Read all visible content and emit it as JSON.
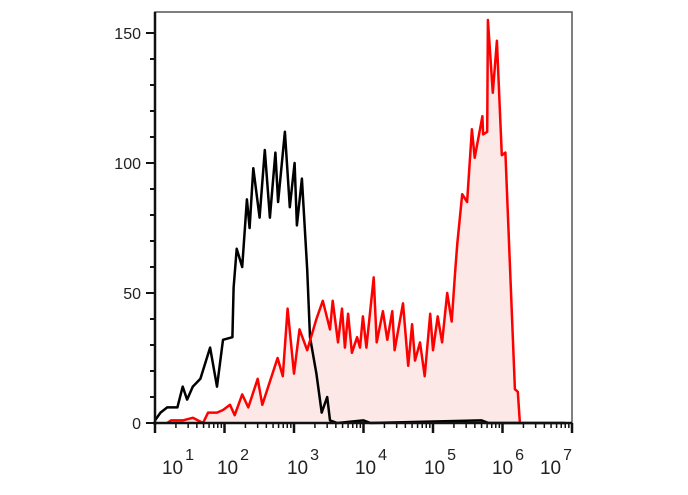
{
  "chart_data": {
    "type": "area",
    "title": "",
    "xlabel": "",
    "ylabel": "",
    "x_scale": "log",
    "xlim": [
      10,
      10000000
    ],
    "ylim": [
      0,
      155
    ],
    "grid": false,
    "legend": "none",
    "x_ticks": [
      {
        "value": 10,
        "base": "10",
        "exp": "1"
      },
      {
        "value": 100,
        "base": "10",
        "exp": "2"
      },
      {
        "value": 1000,
        "base": "10",
        "exp": "3"
      },
      {
        "value": 10000,
        "base": "10",
        "exp": "4"
      },
      {
        "value": 100000,
        "base": "10",
        "exp": "5"
      },
      {
        "value": 1000000,
        "base": "10",
        "exp": "6"
      },
      {
        "value": 10000000,
        "base": "10",
        "exp": "7"
      }
    ],
    "y_ticks": [
      {
        "value": 0,
        "label": "0"
      },
      {
        "value": 50,
        "label": "50"
      },
      {
        "value": 100,
        "label": "100"
      },
      {
        "value": 150,
        "label": "150"
      }
    ],
    "series": [
      {
        "color": "#000000",
        "filled": false,
        "x": [
          10,
          12,
          15,
          21,
          25,
          29,
          35,
          45,
          62,
          78,
          95,
          130,
          135,
          150,
          180,
          210,
          230,
          260,
          320,
          380,
          450,
          540,
          590,
          740,
          870,
          1020,
          1100,
          1300,
          1550,
          1700,
          2100,
          2500,
          3000,
          3300,
          4200,
          10000,
          12600,
          500000,
          630000,
          7900000
        ],
        "y": [
          1,
          4,
          6,
          6,
          14,
          9,
          14,
          17,
          29,
          14,
          32,
          33,
          52,
          67,
          60,
          86,
          75,
          98,
          79,
          105,
          79,
          104,
          85,
          112,
          83,
          100,
          76,
          94,
          59,
          33,
          19,
          4,
          10,
          1,
          0,
          1,
          0,
          1,
          0,
          0
        ]
      },
      {
        "color": "#ff0000",
        "fill": "#fde8e8",
        "filled": true,
        "x": [
          15,
          17,
          25,
          35,
          49,
          58,
          78,
          95,
          120,
          140,
          180,
          220,
          300,
          350,
          580,
          690,
          810,
          1000,
          1200,
          1550,
          2100,
          2600,
          3300,
          3600,
          4300,
          4900,
          5400,
          6000,
          6800,
          8100,
          8900,
          9800,
          11000,
          14000,
          15500,
          19000,
          22000,
          26000,
          28000,
          37000,
          44000,
          50000,
          55000,
          65000,
          76000,
          91000,
          100000,
          117000,
          135000,
          160000,
          186000,
          209000,
          224000,
          263000,
          309000,
          363000,
          398000,
          513000,
          525000,
          603000,
          617000,
          724000,
          832000,
          977000,
          1100000,
          1510000,
          1660000,
          1780000
        ],
        "y": [
          0,
          1,
          1,
          2,
          0,
          4,
          4,
          5,
          7,
          3,
          11,
          6,
          17,
          7,
          25,
          18,
          44,
          19,
          36,
          28,
          40,
          47,
          36,
          47,
          31,
          44,
          29,
          42,
          27,
          33,
          29,
          41,
          29,
          56,
          31,
          43,
          32,
          43,
          28,
          46,
          22,
          38,
          24,
          31,
          18,
          42,
          28,
          41,
          31,
          50,
          39,
          59,
          69,
          88,
          85,
          113,
          102,
          118,
          111,
          112,
          155,
          127,
          147,
          103,
          104,
          13,
          12,
          0
        ]
      }
    ]
  }
}
